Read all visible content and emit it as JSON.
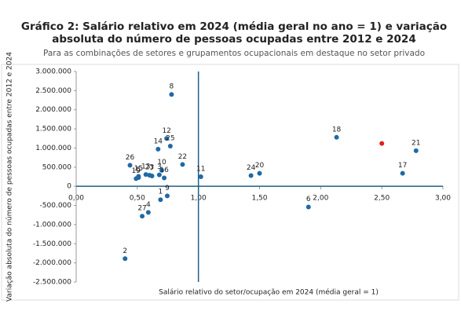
{
  "chart_data": {
    "type": "scatter",
    "title_lines": [
      "Gráfico 2: Salário relativo em 2024 (média geral no ano = 1) e variação",
      "absoluta do número de pessoas ocupadas entre 2012 e 2024"
    ],
    "subtitle": "Para as combinações de setores e grupamentos ocupacionais em destaque no setor privado",
    "x_label": "Salário relativo do setor/ocupação em 2024 (média geral = 1)",
    "y_label": "Variação absoluta do número de pessoas ocupadas entre 2012 e 2024",
    "xlim": [
      0,
      3
    ],
    "ylim": [
      -2500000,
      3000000
    ],
    "xticks": [
      {
        "value": 0,
        "label": "0,00"
      },
      {
        "value": 0.5,
        "label": "0,50"
      },
      {
        "value": 1,
        "label": "1,00"
      },
      {
        "value": 1.5,
        "label": "1,50"
      },
      {
        "value": 2,
        "label": "2,00"
      },
      {
        "value": 2.5,
        "label": "2,50"
      },
      {
        "value": 3,
        "label": "3,00"
      }
    ],
    "yticks": [
      {
        "value": 3000000,
        "label": "3.000.000"
      },
      {
        "value": 2500000,
        "label": "2.500.000"
      },
      {
        "value": 2000000,
        "label": "2.000.000"
      },
      {
        "value": 1500000,
        "label": "1.500.000"
      },
      {
        "value": 1000000,
        "label": "1.000.000"
      },
      {
        "value": 500000,
        "label": "500.000"
      },
      {
        "value": 0,
        "label": "0"
      },
      {
        "value": -500000,
        "label": "-500.000"
      },
      {
        "value": -1000000,
        "label": "-1.000.000"
      },
      {
        "value": -1500000,
        "label": "-1.500.000"
      },
      {
        "value": -2000000,
        "label": "-2.000.000"
      },
      {
        "value": -2500000,
        "label": "-2.500.000"
      }
    ],
    "reference_lines": {
      "x": 1,
      "y": 0,
      "color": "#1f5f8b"
    },
    "series": [
      {
        "color": "#1f6aa5",
        "labels": [
          "1",
          "2",
          "3",
          "4",
          "5",
          "6",
          "7",
          "8",
          "9",
          "10",
          "11",
          "12",
          "13",
          "14",
          "15",
          "16",
          "17",
          "18",
          "19",
          "20",
          "21",
          "22",
          "23",
          "24",
          "25",
          "26",
          "27"
        ],
        "x": [
          0.69,
          0.4,
          0.68,
          0.59,
          0.51,
          1.9,
          0.62,
          0.78,
          0.745,
          0.7,
          1.02,
          0.74,
          0.57,
          0.67,
          0.51,
          0.72,
          2.67,
          2.13,
          0.49,
          1.5,
          2.78,
          0.87,
          0.6,
          1.43,
          0.77,
          0.44,
          0.54
        ],
        "values": [
          -350000,
          -1890000,
          300000,
          -680000,
          230000,
          -540000,
          270000,
          2400000,
          -250000,
          420000,
          250000,
          1250000,
          310000,
          970000,
          260000,
          220000,
          340000,
          1280000,
          200000,
          340000,
          930000,
          570000,
          290000,
          280000,
          1050000,
          550000,
          -780000
        ]
      },
      {
        "color": "#e02020",
        "x": [
          2.5
        ],
        "values": [
          1120000
        ]
      }
    ]
  }
}
